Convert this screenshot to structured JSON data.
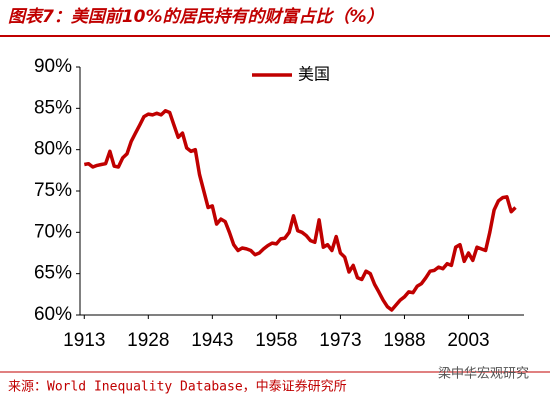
{
  "chart_data": {
    "type": "line",
    "title": "图表7：美国前10%的居民持有的财富占比（%）",
    "source": "来源：World Inequality Database，中泰证券研究所",
    "watermark": "梁中华宏观研究",
    "x": [
      1913,
      1914,
      1915,
      1916,
      1917,
      1918,
      1919,
      1920,
      1921,
      1922,
      1923,
      1924,
      1925,
      1926,
      1927,
      1928,
      1929,
      1930,
      1931,
      1932,
      1933,
      1934,
      1935,
      1936,
      1937,
      1938,
      1939,
      1940,
      1941,
      1942,
      1943,
      1944,
      1945,
      1946,
      1947,
      1948,
      1949,
      1950,
      1951,
      1952,
      1953,
      1954,
      1955,
      1956,
      1957,
      1958,
      1959,
      1960,
      1961,
      1962,
      1963,
      1964,
      1965,
      1966,
      1967,
      1968,
      1969,
      1970,
      1971,
      1972,
      1973,
      1974,
      1975,
      1976,
      1977,
      1978,
      1979,
      1980,
      1981,
      1982,
      1983,
      1984,
      1985,
      1986,
      1987,
      1988,
      1989,
      1990,
      1991,
      1992,
      1993,
      1994,
      1995,
      1996,
      1997,
      1998,
      1999,
      2000,
      2001,
      2002,
      2003,
      2004,
      2005,
      2006,
      2007,
      2008,
      2009,
      2010,
      2011,
      2012,
      2013,
      2014
    ],
    "series": [
      {
        "name": "美国",
        "color": "#c00000",
        "values": [
          78.2,
          78.3,
          77.9,
          78.1,
          78.2,
          78.3,
          79.8,
          78.0,
          77.9,
          79.0,
          79.5,
          81.0,
          82.0,
          83.0,
          84.0,
          84.3,
          84.2,
          84.4,
          84.2,
          84.7,
          84.5,
          83.0,
          81.5,
          82.0,
          80.2,
          79.8,
          80.0,
          77.0,
          75.0,
          73.0,
          73.2,
          71.0,
          71.6,
          71.3,
          70.0,
          68.5,
          67.8,
          68.1,
          68.0,
          67.8,
          67.3,
          67.5,
          68.0,
          68.4,
          68.7,
          68.6,
          69.2,
          69.3,
          70.0,
          72.0,
          70.2,
          70.0,
          69.6,
          69.0,
          68.8,
          71.5,
          68.2,
          68.5,
          67.8,
          69.5,
          67.5,
          67.0,
          65.2,
          66.0,
          64.5,
          64.3,
          65.3,
          65.0,
          63.7,
          62.8,
          61.8,
          61.0,
          60.6,
          61.2,
          61.8,
          62.2,
          62.8,
          62.7,
          63.5,
          63.8,
          64.5,
          65.3,
          65.4,
          65.8,
          65.6,
          66.2,
          66.0,
          68.2,
          68.5,
          66.5,
          67.5,
          66.6,
          68.2,
          68.0,
          67.8,
          70.0,
          72.7,
          73.8,
          74.2,
          74.3,
          72.5,
          73.0
        ]
      }
    ],
    "xlim": [
      1912,
      2016
    ],
    "xticks": [
      1913,
      1928,
      1943,
      1958,
      1973,
      1988,
      2003
    ],
    "ylim": [
      60,
      90
    ],
    "yticks": [
      {
        "value": 60,
        "label": "60%"
      },
      {
        "value": 65,
        "label": "65%"
      },
      {
        "value": 70,
        "label": "70%"
      },
      {
        "value": 75,
        "label": "75%"
      },
      {
        "value": 80,
        "label": "80%"
      },
      {
        "value": 85,
        "label": "85%"
      },
      {
        "value": 90,
        "label": "90%"
      }
    ],
    "legend": "top"
  }
}
